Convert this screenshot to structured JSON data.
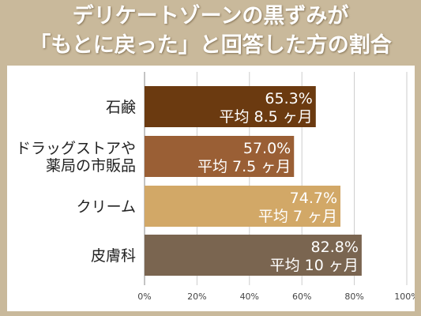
{
  "title_line1": "デリケートゾーンの黒ずみが",
  "title_line2": "「もとに戻った」と回答した方の割合",
  "chart_data": {
    "type": "bar",
    "orientation": "horizontal",
    "categories": [
      [
        "石鹸"
      ],
      [
        "ドラッグストアや",
        "薬局の市販品"
      ],
      [
        "クリーム"
      ],
      [
        "皮膚科"
      ]
    ],
    "values": [
      65.3,
      57.0,
      74.7,
      82.8
    ],
    "value_labels": [
      "65.3%",
      "57.0%",
      "74.7%",
      "82.8%"
    ],
    "sub_labels": [
      "平均 8.5 ヶ月",
      "平均 7.5 ヶ月",
      "平均 7 ヶ月",
      "平均 10 ヶ月"
    ],
    "bar_colors": [
      "#6b3a10",
      "#9a5f35",
      "#d2a867",
      "#7a6550"
    ],
    "xlim": [
      0,
      100
    ],
    "x_ticks": [
      0,
      20,
      40,
      60,
      80,
      100
    ],
    "x_tick_labels": [
      "0%",
      "20%",
      "40%",
      "60%",
      "80%",
      "100%"
    ],
    "grid": true,
    "legend": "none"
  }
}
